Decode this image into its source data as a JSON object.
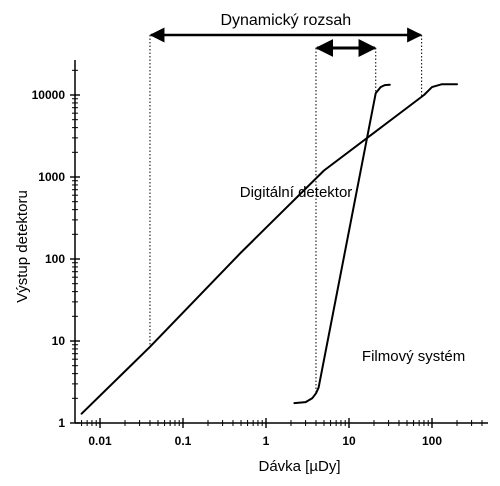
{
  "chart_data": {
    "type": "line",
    "title": "Dynamický rozsah",
    "xlabel": "Dávka [µDy]",
    "ylabel": "Výstup detektoru",
    "x_scale": "log",
    "y_scale": "log",
    "xlim": [
      0.004,
      300
    ],
    "ylim": [
      1,
      30000
    ],
    "x_ticks": [
      {
        "value": 0.01,
        "label": "0.01"
      },
      {
        "value": 0.1,
        "label": "0.1"
      },
      {
        "value": 1,
        "label": "1"
      },
      {
        "value": 10,
        "label": "10"
      },
      {
        "value": 100,
        "label": "100"
      }
    ],
    "y_ticks": [
      {
        "value": 1,
        "label": "1"
      },
      {
        "value": 10,
        "label": "10"
      },
      {
        "value": 100,
        "label": "100"
      },
      {
        "value": 1000,
        "label": "1000"
      },
      {
        "value": 10000,
        "label": "10000"
      }
    ],
    "grid": false,
    "series": [
      {
        "x": [
          0.006,
          0.04,
          0.5,
          5,
          80,
          100,
          130,
          200
        ],
        "y": [
          1.3,
          8.5,
          120,
          1200,
          10000,
          12500,
          13500,
          13500
        ]
      },
      {
        "x": [
          2.2,
          3,
          3.6,
          4,
          4.3,
          21,
          24,
          27,
          31
        ],
        "y": [
          1.75,
          1.8,
          2,
          2.3,
          2.7,
          10500,
          12500,
          13200,
          13300
        ]
      }
    ],
    "annotations": [
      {
        "text": "Digitální detektor",
        "x": 2.3,
        "y": 1000
      },
      {
        "text": "Filmový systém",
        "x": 60,
        "y": 10
      }
    ],
    "ranges": [
      {
        "from": 0.04,
        "to": 75,
        "marks_series": "Digitální detektor"
      },
      {
        "from": 4,
        "to": 21,
        "marks_series": "Filmový systém"
      }
    ]
  }
}
